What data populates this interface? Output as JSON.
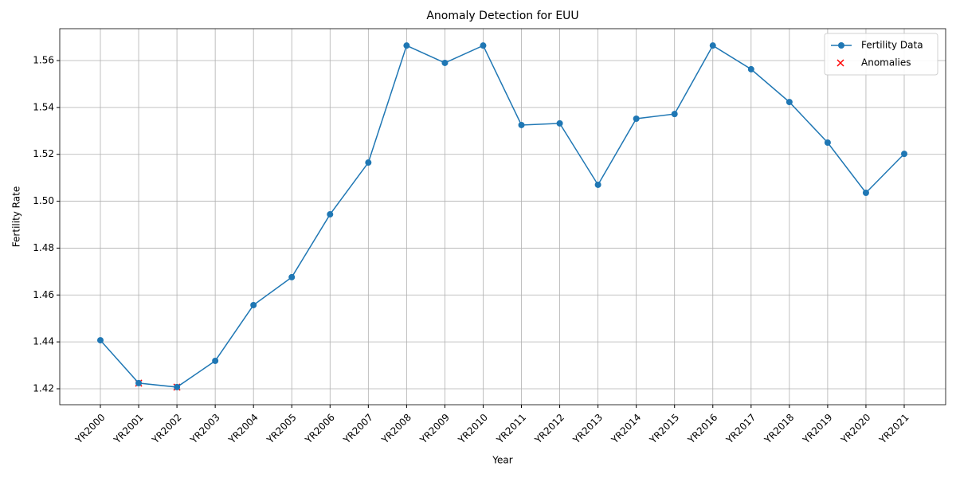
{
  "chart_data": {
    "type": "line",
    "title": "Anomaly Detection for EUU",
    "x_label": "Year",
    "y_label": "Fertility Rate",
    "categories": [
      "YR2000",
      "YR2001",
      "YR2002",
      "YR2003",
      "YR2004",
      "YR2005",
      "YR2006",
      "YR2007",
      "YR2008",
      "YR2009",
      "YR2010",
      "YR2011",
      "YR2012",
      "YR2013",
      "YR2014",
      "YR2015",
      "YR2016",
      "YR2017",
      "YR2018",
      "YR2019",
      "YR2020",
      "YR2021"
    ],
    "series": [
      {
        "name": "Fertility Data",
        "color": "#1f77b4",
        "marker": "o",
        "values": [
          1.4407,
          1.4224,
          1.4207,
          1.4319,
          1.4557,
          1.4676,
          1.4944,
          1.5165,
          1.5664,
          1.559,
          1.5664,
          1.5325,
          1.5332,
          1.507,
          1.5352,
          1.5372,
          1.5664,
          1.5563,
          1.5423,
          1.525,
          1.5036,
          1.5202
        ]
      },
      {
        "name": "Anomalies",
        "color": "#ff0000",
        "marker": "x",
        "values": [
          null,
          1.4224,
          1.4207,
          null,
          null,
          null,
          null,
          null,
          null,
          null,
          null,
          null,
          null,
          null,
          null,
          null,
          null,
          null,
          null,
          null,
          null,
          null
        ]
      }
    ],
    "ylim": [
      1.4132,
      1.5736
    ],
    "yticks": [
      1.42,
      1.44,
      1.46,
      1.48,
      {
        "value": 1.5,
        "label": "1.50"
      },
      1.52,
      1.54,
      1.56
    ],
    "grid": true,
    "legend": "upper right"
  }
}
